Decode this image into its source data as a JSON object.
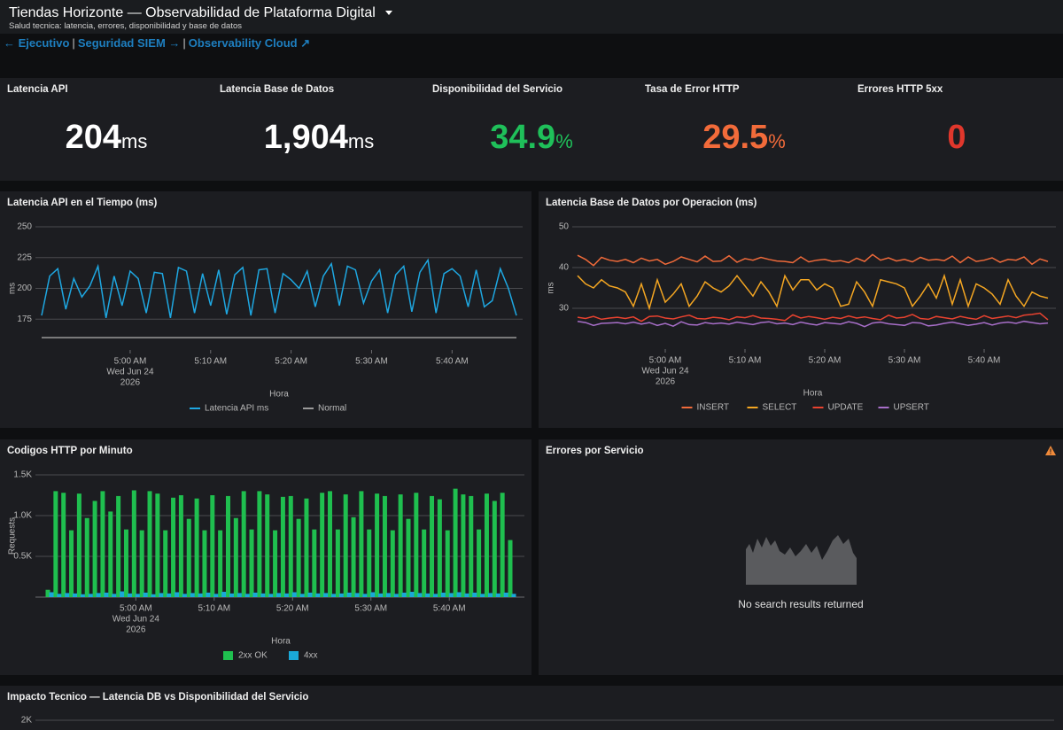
{
  "header": {
    "title": "Tiendas Horizonte — Observabilidad de Plataforma Digital",
    "subtitle": "Salud tecnica: latencia, errores, disponibilidad y base de datos"
  },
  "nav": {
    "links": [
      "← Ejecutivo",
      "Seguridad SIEM →",
      "Observability Cloud ↗"
    ],
    "separator": "|"
  },
  "kpis": [
    {
      "title": "Latencia API",
      "value": 204,
      "unit": "ms",
      "color": "#ffffff"
    },
    {
      "title": "Latencia Base de Datos",
      "value": 1904,
      "value_label": "1,904",
      "unit": "ms",
      "color": "#ffffff"
    },
    {
      "title": "Disponibilidad del Servicio",
      "value": 34.9,
      "unit": "%",
      "color": "#1fc05a"
    },
    {
      "title": "Tasa de Error HTTP",
      "value": 29.5,
      "unit": "%",
      "color": "#f26b3a"
    },
    {
      "title": "Errores HTTP 5xx",
      "value": 0,
      "color": "#e0372c"
    }
  ],
  "charts": [
    {
      "type": "line",
      "title": "Latencia API en el Tiempo (ms)",
      "x_label": "Hora",
      "y_label": "ms",
      "grid": true,
      "legend": "bottom",
      "x": [
        "2026-06-24 04:49",
        "2026-06-24 04:50",
        "2026-06-24 04:51",
        "2026-06-24 04:52",
        "2026-06-24 04:53",
        "2026-06-24 04:54",
        "2026-06-24 04:55",
        "2026-06-24 04:56",
        "2026-06-24 04:57",
        "2026-06-24 04:58",
        "2026-06-24 04:59",
        "2026-06-24 05:00",
        "2026-06-24 05:01",
        "2026-06-24 05:02",
        "2026-06-24 05:03",
        "2026-06-24 05:04",
        "2026-06-24 05:05",
        "2026-06-24 05:06",
        "2026-06-24 05:07",
        "2026-06-24 05:08",
        "2026-06-24 05:09",
        "2026-06-24 05:10",
        "2026-06-24 05:11",
        "2026-06-24 05:12",
        "2026-06-24 05:13",
        "2026-06-24 05:14",
        "2026-06-24 05:15",
        "2026-06-24 05:16",
        "2026-06-24 05:17",
        "2026-06-24 05:18",
        "2026-06-24 05:19",
        "2026-06-24 05:20",
        "2026-06-24 05:21",
        "2026-06-24 05:22",
        "2026-06-24 05:23",
        "2026-06-24 05:24",
        "2026-06-24 05:25",
        "2026-06-24 05:26",
        "2026-06-24 05:27",
        "2026-06-24 05:28",
        "2026-06-24 05:29",
        "2026-06-24 05:30",
        "2026-06-24 05:31",
        "2026-06-24 05:32",
        "2026-06-24 05:33",
        "2026-06-24 05:34",
        "2026-06-24 05:35",
        "2026-06-24 05:36",
        "2026-06-24 05:37",
        "2026-06-24 05:38",
        "2026-06-24 05:39",
        "2026-06-24 05:40",
        "2026-06-24 05:41",
        "2026-06-24 05:42",
        "2026-06-24 05:43",
        "2026-06-24 05:44",
        "2026-06-24 05:45",
        "2026-06-24 05:46",
        "2026-06-24 05:47",
        "2026-06-24 05:48"
      ],
      "xlim": [
        "2026-06-24 04:49",
        "2026-06-24 05:48"
      ],
      "xticks": [
        {
          "value": "2026-06-24 05:00",
          "label": "5:00 AM"
        },
        {
          "value": "2026-06-24 05:10",
          "label": "5:10 AM"
        },
        {
          "value": "2026-06-24 05:20",
          "label": "5:20 AM"
        },
        {
          "value": "2026-06-24 05:30",
          "label": "5:30 AM"
        },
        {
          "value": "2026-06-24 05:40",
          "label": "5:40 AM"
        }
      ],
      "xtick_date": [
        "Wed Jun 24",
        "2026"
      ],
      "ylim": [
        150,
        250
      ],
      "yticks": [
        175,
        200,
        225,
        250
      ],
      "series": [
        {
          "name": "Latencia API ms",
          "color": "#1ea7e1",
          "values": [
            178,
            210,
            216,
            183,
            208,
            193,
            202,
            218,
            176,
            210,
            186,
            214,
            208,
            180,
            213,
            212,
            176,
            217,
            214,
            180,
            212,
            186,
            215,
            179,
            211,
            217,
            178,
            215,
            216,
            180,
            212,
            207,
            200,
            214,
            185,
            210,
            220,
            186,
            218,
            215,
            188,
            206,
            215,
            180,
            211,
            218,
            181,
            213,
            223,
            180,
            212,
            216,
            210,
            185,
            215,
            185,
            190,
            216,
            200,
            178
          ]
        },
        {
          "name": "Normal",
          "color": "#9a9a9a",
          "values": [
            160,
            160,
            160,
            160,
            160,
            160,
            160,
            160,
            160,
            160,
            160,
            160,
            160,
            160,
            160,
            160,
            160,
            160,
            160,
            160,
            160,
            160,
            160,
            160,
            160,
            160,
            160,
            160,
            160,
            160,
            160,
            160,
            160,
            160,
            160,
            160,
            160,
            160,
            160,
            160,
            160,
            160,
            160,
            160,
            160,
            160,
            160,
            160,
            160,
            160,
            160,
            160,
            160,
            160,
            160,
            160,
            160,
            160,
            160,
            160
          ]
        }
      ]
    },
    {
      "type": "line",
      "title": "Latencia Base de Datos por Operacion (ms)",
      "x_label": "Hora",
      "y_label": "ms",
      "grid": true,
      "legend": "bottom",
      "x": [
        "2026-06-24 04:49",
        "2026-06-24 04:50",
        "2026-06-24 04:51",
        "2026-06-24 04:52",
        "2026-06-24 04:53",
        "2026-06-24 04:54",
        "2026-06-24 04:55",
        "2026-06-24 04:56",
        "2026-06-24 04:57",
        "2026-06-24 04:58",
        "2026-06-24 04:59",
        "2026-06-24 05:00",
        "2026-06-24 05:01",
        "2026-06-24 05:02",
        "2026-06-24 05:03",
        "2026-06-24 05:04",
        "2026-06-24 05:05",
        "2026-06-24 05:06",
        "2026-06-24 05:07",
        "2026-06-24 05:08",
        "2026-06-24 05:09",
        "2026-06-24 05:10",
        "2026-06-24 05:11",
        "2026-06-24 05:12",
        "2026-06-24 05:13",
        "2026-06-24 05:14",
        "2026-06-24 05:15",
        "2026-06-24 05:16",
        "2026-06-24 05:17",
        "2026-06-24 05:18",
        "2026-06-24 05:19",
        "2026-06-24 05:20",
        "2026-06-24 05:21",
        "2026-06-24 05:22",
        "2026-06-24 05:23",
        "2026-06-24 05:24",
        "2026-06-24 05:25",
        "2026-06-24 05:26",
        "2026-06-24 05:27",
        "2026-06-24 05:28",
        "2026-06-24 05:29",
        "2026-06-24 05:30",
        "2026-06-24 05:31",
        "2026-06-24 05:32",
        "2026-06-24 05:33",
        "2026-06-24 05:34",
        "2026-06-24 05:35",
        "2026-06-24 05:36",
        "2026-06-24 05:37",
        "2026-06-24 05:38",
        "2026-06-24 05:39",
        "2026-06-24 05:40",
        "2026-06-24 05:41",
        "2026-06-24 05:42",
        "2026-06-24 05:43",
        "2026-06-24 05:44",
        "2026-06-24 05:45",
        "2026-06-24 05:46",
        "2026-06-24 05:47",
        "2026-06-24 05:48"
      ],
      "xlim": [
        "2026-06-24 04:49",
        "2026-06-24 05:48"
      ],
      "xticks": [
        {
          "value": "2026-06-24 05:00",
          "label": "5:00 AM"
        },
        {
          "value": "2026-06-24 05:10",
          "label": "5:10 AM"
        },
        {
          "value": "2026-06-24 05:20",
          "label": "5:20 AM"
        },
        {
          "value": "2026-06-24 05:30",
          "label": "5:30 AM"
        },
        {
          "value": "2026-06-24 05:40",
          "label": "5:40 AM"
        }
      ],
      "xtick_date": [
        "Wed Jun 24",
        "2026"
      ],
      "ylim": [
        20,
        50
      ],
      "yticks": [
        30,
        40,
        50
      ],
      "series": [
        {
          "name": "INSERT",
          "color": "#ef6a3a",
          "values": [
            43,
            42,
            40.5,
            42.5,
            41.8,
            41.5,
            42,
            41.2,
            42.3,
            41.6,
            42,
            40.8,
            41.5,
            42.6,
            42,
            41.4,
            42.8,
            41.5,
            41.6,
            42.9,
            41.3,
            42.2,
            41.8,
            42.5,
            42,
            41.6,
            41.5,
            41.2,
            42.6,
            41.4,
            41.8,
            42,
            41.5,
            41.7,
            41.2,
            42.3,
            41.5,
            43.2,
            41.8,
            42.4,
            41.6,
            42,
            41.4,
            42.5,
            41.8,
            42,
            41.7,
            42.8,
            41.2,
            42.6,
            41.5,
            41.8,
            42.4,
            41.3,
            42,
            41.8,
            42.6,
            40.8,
            42.1,
            41.5
          ]
        },
        {
          "name": "SELECT",
          "color": "#f4a622",
          "values": [
            38,
            36,
            35,
            37,
            35.5,
            35,
            34,
            30.5,
            36,
            30,
            37,
            31.5,
            33.5,
            36,
            30.5,
            33,
            36.5,
            35,
            34,
            35.5,
            38,
            35.5,
            33,
            36.5,
            34,
            30.5,
            38,
            34.5,
            37,
            37,
            34.5,
            36,
            35,
            30.5,
            31,
            36.5,
            34,
            30.5,
            37,
            36.5,
            36,
            35,
            30.5,
            33,
            36,
            32.5,
            38,
            31,
            37,
            30.5,
            36,
            35,
            33.5,
            31,
            37,
            33,
            30.5,
            34,
            33,
            32.5
          ]
        },
        {
          "name": "UPDATE",
          "color": "#e8422f",
          "values": [
            27.8,
            27.5,
            28,
            27.3,
            27.6,
            27.8,
            27.5,
            27.9,
            26.8,
            28,
            28.1,
            27.6,
            27.4,
            27.9,
            28.3,
            27.5,
            27.4,
            27.8,
            27.6,
            27.2,
            27.9,
            27.7,
            28.2,
            27.6,
            27.5,
            27.3,
            27,
            28.4,
            27.6,
            28,
            27.7,
            27.3,
            27.8,
            27.5,
            28.1,
            27.6,
            27.9,
            27.5,
            27.2,
            28.3,
            27.6,
            27.8,
            28.5,
            27.5,
            27.3,
            28,
            27.7,
            27.4,
            28,
            27.6,
            27.3,
            28.2,
            27.5,
            27.8,
            28.1,
            27.7,
            28.3,
            28.5,
            28.8,
            27.2
          ]
        },
        {
          "name": "UPSERT",
          "color": "#a76ec8",
          "values": [
            26.8,
            26.5,
            25.8,
            26.3,
            26.4,
            26.5,
            26.2,
            26.6,
            26.1,
            26.5,
            25.8,
            26.3,
            25.6,
            26.7,
            26,
            25.9,
            26.5,
            26.2,
            26.4,
            26.1,
            26.6,
            26.3,
            26,
            26.5,
            26.7,
            26.2,
            26.4,
            26,
            26.6,
            26.2,
            25.9,
            26.5,
            26.3,
            26.1,
            26.7,
            26.3,
            25.5,
            26.4,
            26.6,
            26.2,
            26,
            25.8,
            26.5,
            26.4,
            25.7,
            25.9,
            26.3,
            26.6,
            26.2,
            25.8,
            26.1,
            26.5,
            25.9,
            26.4,
            26.6,
            26.3,
            26.8,
            26.5,
            26.2,
            26.4
          ]
        }
      ]
    },
    {
      "type": "bar",
      "title": "Codigos HTTP por Minuto",
      "x_label": "Hora",
      "y_label": "Requests",
      "grid": true,
      "legend": "bottom",
      "x": [
        "2026-06-24 04:49",
        "2026-06-24 04:50",
        "2026-06-24 04:51",
        "2026-06-24 04:52",
        "2026-06-24 04:53",
        "2026-06-24 04:54",
        "2026-06-24 04:55",
        "2026-06-24 04:56",
        "2026-06-24 04:57",
        "2026-06-24 04:58",
        "2026-06-24 04:59",
        "2026-06-24 05:00",
        "2026-06-24 05:01",
        "2026-06-24 05:02",
        "2026-06-24 05:03",
        "2026-06-24 05:04",
        "2026-06-24 05:05",
        "2026-06-24 05:06",
        "2026-06-24 05:07",
        "2026-06-24 05:08",
        "2026-06-24 05:09",
        "2026-06-24 05:10",
        "2026-06-24 05:11",
        "2026-06-24 05:12",
        "2026-06-24 05:13",
        "2026-06-24 05:14",
        "2026-06-24 05:15",
        "2026-06-24 05:16",
        "2026-06-24 05:17",
        "2026-06-24 05:18",
        "2026-06-24 05:19",
        "2026-06-24 05:20",
        "2026-06-24 05:21",
        "2026-06-24 05:22",
        "2026-06-24 05:23",
        "2026-06-24 05:24",
        "2026-06-24 05:25",
        "2026-06-24 05:26",
        "2026-06-24 05:27",
        "2026-06-24 05:28",
        "2026-06-24 05:29",
        "2026-06-24 05:30",
        "2026-06-24 05:31",
        "2026-06-24 05:32",
        "2026-06-24 05:33",
        "2026-06-24 05:34",
        "2026-06-24 05:35",
        "2026-06-24 05:36",
        "2026-06-24 05:37",
        "2026-06-24 05:38",
        "2026-06-24 05:39",
        "2026-06-24 05:40",
        "2026-06-24 05:41",
        "2026-06-24 05:42",
        "2026-06-24 05:43",
        "2026-06-24 05:44",
        "2026-06-24 05:45",
        "2026-06-24 05:46",
        "2026-06-24 05:47",
        "2026-06-24 05:48"
      ],
      "xlim": [
        "2026-06-24 04:49",
        "2026-06-24 05:48"
      ],
      "xticks": [
        {
          "value": "2026-06-24 05:00",
          "label": "5:00 AM"
        },
        {
          "value": "2026-06-24 05:10",
          "label": "5:10 AM"
        },
        {
          "value": "2026-06-24 05:20",
          "label": "5:20 AM"
        },
        {
          "value": "2026-06-24 05:30",
          "label": "5:30 AM"
        },
        {
          "value": "2026-06-24 05:40",
          "label": "5:40 AM"
        }
      ],
      "xtick_date": [
        "Wed Jun 24",
        "2026"
      ],
      "ylim": [
        0,
        1500
      ],
      "yticks": [
        {
          "value": 500,
          "label": "0.5K"
        },
        {
          "value": 1000,
          "label": "1.0K"
        },
        {
          "value": 1500,
          "label": "1.5K"
        }
      ],
      "series": [
        {
          "name": "2xx OK",
          "color": "#1fbf4f",
          "values": [
            90,
            1300,
            1280,
            820,
            1270,
            970,
            1180,
            1300,
            1050,
            1240,
            830,
            1310,
            820,
            1300,
            1270,
            820,
            1220,
            1250,
            960,
            1210,
            820,
            1250,
            820,
            1240,
            970,
            1300,
            830,
            1300,
            1260,
            820,
            1230,
            1240,
            960,
            1210,
            830,
            1280,
            1300,
            830,
            1260,
            980,
            1300,
            830,
            1270,
            1240,
            820,
            1260,
            960,
            1280,
            830,
            1240,
            1200,
            820,
            1330,
            1260,
            1240,
            830,
            1270,
            1180,
            1280,
            700
          ]
        },
        {
          "name": "4xx",
          "color": "#1aa8d8",
          "values": [
            60,
            40,
            50,
            45,
            35,
            40,
            50,
            55,
            40,
            70,
            45,
            40,
            55,
            35,
            50,
            45,
            60,
            40,
            50,
            45,
            55,
            40,
            65,
            45,
            50,
            40,
            55,
            45,
            40,
            50,
            45,
            60,
            40,
            55,
            45,
            50,
            40,
            45,
            55,
            50,
            40,
            60,
            45,
            50,
            40,
            55,
            65,
            50,
            45,
            40,
            55,
            50,
            60,
            45,
            55,
            40,
            50,
            45,
            55,
            40
          ]
        }
      ]
    }
  ],
  "errors_panel": {
    "title": "Errores por Servicio",
    "message": "No search results returned"
  },
  "impact_panel": {
    "title": "Impacto Tecnico — Latencia DB vs Disponibilidad del Servicio",
    "yticks": [
      {
        "value": 2000,
        "label": "2K"
      }
    ]
  }
}
